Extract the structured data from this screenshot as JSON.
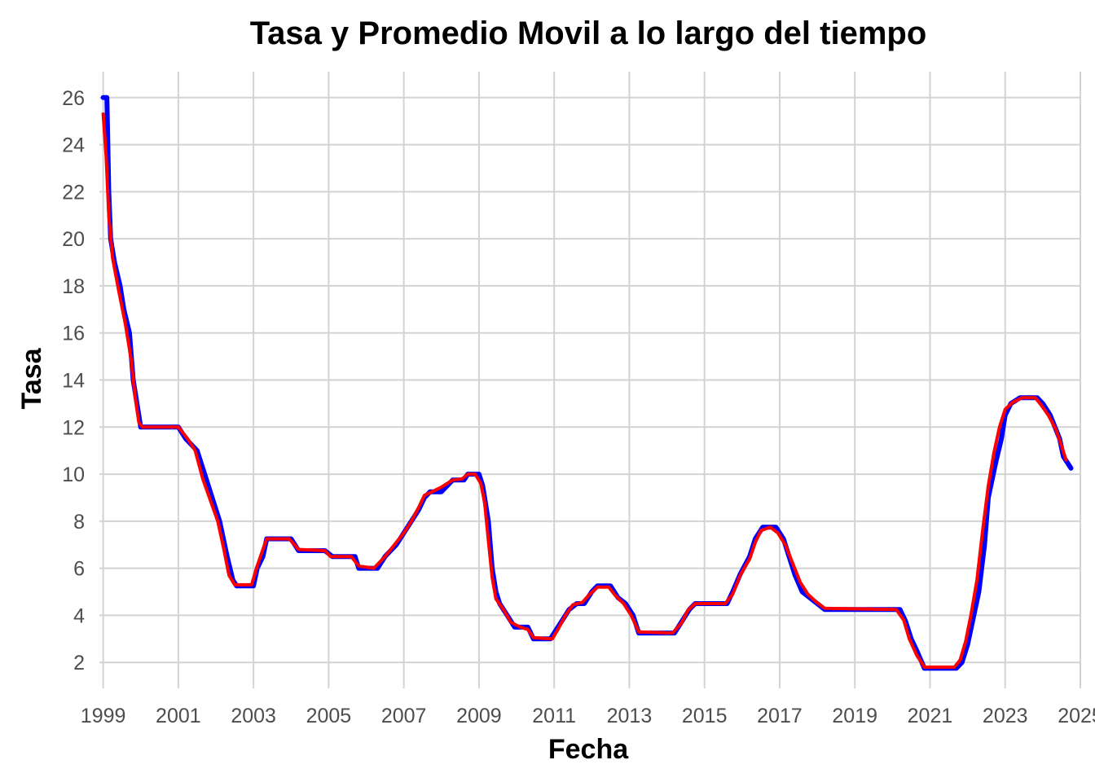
{
  "chart_data": {
    "type": "line",
    "title": "Tasa y Promedio Movil a lo largo del tiempo",
    "xlabel": "Fecha",
    "ylabel": "Tasa",
    "xlim": [
      1998.9,
      2025.0
    ],
    "ylim": [
      0.9,
      27.1
    ],
    "x_ticks": [
      "1999",
      "2001",
      "2003",
      "2005",
      "2007",
      "2009",
      "2011",
      "2013",
      "2015",
      "2017",
      "2019",
      "2021",
      "2023",
      "2025"
    ],
    "x_tick_values": [
      1999,
      2001,
      2003,
      2005,
      2007,
      2009,
      2011,
      2013,
      2015,
      2017,
      2019,
      2021,
      2023,
      2025
    ],
    "y_ticks": [
      2,
      4,
      6,
      8,
      10,
      12,
      14,
      16,
      18,
      20,
      22,
      24,
      26
    ],
    "grid": true,
    "legend": "none",
    "series": [
      {
        "color": "#0000ff",
        "points": [
          [
            1999.0,
            26.0
          ],
          [
            1999.1,
            26.0
          ],
          [
            1999.15,
            22.0
          ],
          [
            1999.2,
            20.0
          ],
          [
            1999.3,
            19.0
          ],
          [
            1999.45,
            18.0
          ],
          [
            1999.55,
            17.0
          ],
          [
            1999.7,
            16.0
          ],
          [
            1999.8,
            14.0
          ],
          [
            1999.9,
            13.0
          ],
          [
            2000.0,
            12.0
          ],
          [
            2001.0,
            12.0
          ],
          [
            2001.2,
            11.5
          ],
          [
            2001.5,
            11.0
          ],
          [
            2001.7,
            10.0
          ],
          [
            2001.9,
            9.0
          ],
          [
            2002.1,
            8.0
          ],
          [
            2002.3,
            6.5
          ],
          [
            2002.45,
            5.5
          ],
          [
            2002.55,
            5.25
          ],
          [
            2003.0,
            5.25
          ],
          [
            2003.1,
            6.0
          ],
          [
            2003.25,
            6.5
          ],
          [
            2003.35,
            7.25
          ],
          [
            2004.0,
            7.25
          ],
          [
            2004.2,
            6.75
          ],
          [
            2004.9,
            6.75
          ],
          [
            2005.1,
            6.5
          ],
          [
            2005.7,
            6.5
          ],
          [
            2005.8,
            6.0
          ],
          [
            2006.3,
            6.0
          ],
          [
            2006.5,
            6.5
          ],
          [
            2006.8,
            7.0
          ],
          [
            2007.0,
            7.5
          ],
          [
            2007.2,
            8.0
          ],
          [
            2007.4,
            8.5
          ],
          [
            2007.55,
            9.0
          ],
          [
            2007.7,
            9.25
          ],
          [
            2008.0,
            9.25
          ],
          [
            2008.3,
            9.75
          ],
          [
            2008.6,
            9.75
          ],
          [
            2008.7,
            10.0
          ],
          [
            2009.0,
            10.0
          ],
          [
            2009.1,
            9.5
          ],
          [
            2009.25,
            8.0
          ],
          [
            2009.35,
            6.0
          ],
          [
            2009.45,
            5.0
          ],
          [
            2009.55,
            4.5
          ],
          [
            2009.75,
            4.0
          ],
          [
            2009.95,
            3.5
          ],
          [
            2010.3,
            3.5
          ],
          [
            2010.45,
            3.0
          ],
          [
            2010.9,
            3.0
          ],
          [
            2011.1,
            3.5
          ],
          [
            2011.4,
            4.25
          ],
          [
            2011.6,
            4.5
          ],
          [
            2011.8,
            4.5
          ],
          [
            2012.0,
            5.0
          ],
          [
            2012.15,
            5.25
          ],
          [
            2012.5,
            5.25
          ],
          [
            2012.7,
            4.75
          ],
          [
            2012.9,
            4.5
          ],
          [
            2013.1,
            4.0
          ],
          [
            2013.25,
            3.25
          ],
          [
            2014.2,
            3.25
          ],
          [
            2014.4,
            3.75
          ],
          [
            2014.6,
            4.25
          ],
          [
            2014.75,
            4.5
          ],
          [
            2015.6,
            4.5
          ],
          [
            2015.75,
            5.0
          ],
          [
            2015.95,
            5.75
          ],
          [
            2016.2,
            6.5
          ],
          [
            2016.35,
            7.25
          ],
          [
            2016.55,
            7.75
          ],
          [
            2016.9,
            7.75
          ],
          [
            2017.1,
            7.25
          ],
          [
            2017.25,
            6.5
          ],
          [
            2017.4,
            5.75
          ],
          [
            2017.6,
            5.0
          ],
          [
            2017.8,
            4.75
          ],
          [
            2018.0,
            4.5
          ],
          [
            2018.2,
            4.25
          ],
          [
            2020.2,
            4.25
          ],
          [
            2020.35,
            3.75
          ],
          [
            2020.5,
            3.0
          ],
          [
            2020.65,
            2.5
          ],
          [
            2020.85,
            1.75
          ],
          [
            2021.7,
            1.75
          ],
          [
            2021.85,
            2.0
          ],
          [
            2022.0,
            2.75
          ],
          [
            2022.1,
            3.5
          ],
          [
            2022.3,
            5.0
          ],
          [
            2022.45,
            7.0
          ],
          [
            2022.55,
            9.0
          ],
          [
            2022.75,
            10.5
          ],
          [
            2022.9,
            11.5
          ],
          [
            2023.0,
            12.5
          ],
          [
            2023.15,
            13.0
          ],
          [
            2023.4,
            13.25
          ],
          [
            2023.85,
            13.25
          ],
          [
            2024.0,
            13.0
          ],
          [
            2024.2,
            12.5
          ],
          [
            2024.45,
            11.5
          ],
          [
            2024.55,
            10.75
          ],
          [
            2024.75,
            10.25
          ]
        ]
      },
      {
        "color": "#ff0000",
        "points": [
          [
            1999.0,
            25.3
          ],
          [
            1999.08,
            23.5
          ],
          [
            1999.15,
            21.0
          ],
          [
            1999.25,
            19.2
          ],
          [
            1999.4,
            17.9
          ],
          [
            1999.6,
            16.3
          ],
          [
            1999.75,
            14.8
          ],
          [
            1999.85,
            13.3
          ],
          [
            1999.95,
            12.2
          ],
          [
            2000.05,
            12.0
          ],
          [
            2001.0,
            12.0
          ],
          [
            2001.25,
            11.5
          ],
          [
            2001.45,
            11.0
          ],
          [
            2001.65,
            9.8
          ],
          [
            2001.85,
            8.9
          ],
          [
            2002.05,
            8.0
          ],
          [
            2002.2,
            6.9
          ],
          [
            2002.35,
            5.7
          ],
          [
            2002.5,
            5.3
          ],
          [
            2002.95,
            5.3
          ],
          [
            2003.1,
            6.1
          ],
          [
            2003.25,
            6.8
          ],
          [
            2003.35,
            7.25
          ],
          [
            2003.95,
            7.25
          ],
          [
            2004.2,
            6.8
          ],
          [
            2004.9,
            6.75
          ],
          [
            2005.05,
            6.5
          ],
          [
            2005.6,
            6.5
          ],
          [
            2005.8,
            6.1
          ],
          [
            2006.2,
            6.0
          ],
          [
            2006.5,
            6.5
          ],
          [
            2006.8,
            7.1
          ],
          [
            2007.0,
            7.5
          ],
          [
            2007.2,
            8.0
          ],
          [
            2007.4,
            8.6
          ],
          [
            2007.55,
            9.1
          ],
          [
            2007.75,
            9.25
          ],
          [
            2008.0,
            9.45
          ],
          [
            2008.3,
            9.75
          ],
          [
            2008.55,
            9.8
          ],
          [
            2008.7,
            10.0
          ],
          [
            2008.9,
            10.0
          ],
          [
            2009.05,
            9.6
          ],
          [
            2009.15,
            8.8
          ],
          [
            2009.25,
            7.2
          ],
          [
            2009.35,
            5.6
          ],
          [
            2009.45,
            4.7
          ],
          [
            2009.65,
            4.25
          ],
          [
            2009.85,
            3.7
          ],
          [
            2010.1,
            3.5
          ],
          [
            2010.3,
            3.4
          ],
          [
            2010.45,
            3.05
          ],
          [
            2010.95,
            3.0
          ],
          [
            2011.1,
            3.4
          ],
          [
            2011.3,
            4.0
          ],
          [
            2011.5,
            4.45
          ],
          [
            2011.75,
            4.55
          ],
          [
            2011.95,
            4.9
          ],
          [
            2012.15,
            5.2
          ],
          [
            2012.45,
            5.2
          ],
          [
            2012.65,
            4.8
          ],
          [
            2012.85,
            4.5
          ],
          [
            2013.05,
            4.0
          ],
          [
            2013.25,
            3.3
          ],
          [
            2014.15,
            3.25
          ],
          [
            2014.4,
            3.7
          ],
          [
            2014.55,
            4.2
          ],
          [
            2014.75,
            4.5
          ],
          [
            2015.55,
            4.5
          ],
          [
            2015.75,
            4.9
          ],
          [
            2015.95,
            5.7
          ],
          [
            2016.2,
            6.4
          ],
          [
            2016.35,
            7.1
          ],
          [
            2016.5,
            7.6
          ],
          [
            2016.75,
            7.75
          ],
          [
            2016.95,
            7.5
          ],
          [
            2017.15,
            7.0
          ],
          [
            2017.35,
            6.2
          ],
          [
            2017.55,
            5.4
          ],
          [
            2017.75,
            4.9
          ],
          [
            2017.95,
            4.6
          ],
          [
            2018.2,
            4.3
          ],
          [
            2020.1,
            4.25
          ],
          [
            2020.3,
            3.8
          ],
          [
            2020.45,
            3.0
          ],
          [
            2020.65,
            2.3
          ],
          [
            2020.85,
            1.8
          ],
          [
            2021.65,
            1.8
          ],
          [
            2021.8,
            2.1
          ],
          [
            2021.95,
            2.9
          ],
          [
            2022.1,
            4.1
          ],
          [
            2022.25,
            5.5
          ],
          [
            2022.4,
            7.6
          ],
          [
            2022.55,
            9.5
          ],
          [
            2022.7,
            10.9
          ],
          [
            2022.85,
            12.0
          ],
          [
            2023.0,
            12.75
          ],
          [
            2023.2,
            13.05
          ],
          [
            2023.45,
            13.25
          ],
          [
            2023.8,
            13.25
          ],
          [
            2023.95,
            12.95
          ],
          [
            2024.15,
            12.5
          ],
          [
            2024.35,
            11.9
          ],
          [
            2024.5,
            11.2
          ],
          [
            2024.62,
            10.6
          ]
        ]
      }
    ]
  }
}
